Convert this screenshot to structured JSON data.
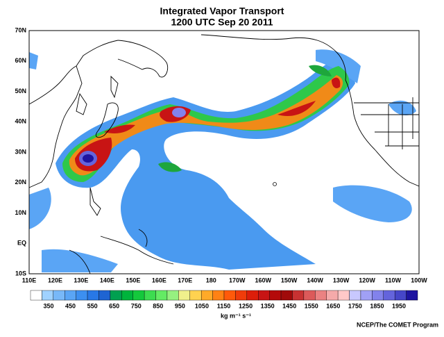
{
  "title": "Integrated Vapor Transport",
  "subtitle": "1200 UTC Sep 20 2011",
  "lat_labels": [
    "70N",
    "60N",
    "50N",
    "40N",
    "30N",
    "20N",
    "10N",
    "EQ",
    "10S"
  ],
  "lon_labels": [
    "110E",
    "120E",
    "130E",
    "140E",
    "150E",
    "160E",
    "170E",
    "180",
    "170W",
    "160W",
    "150W",
    "140W",
    "130W",
    "120W",
    "110W",
    "100W"
  ],
  "colorbar": {
    "colors": [
      "#ffffff",
      "#a0d2ff",
      "#78b8f8",
      "#5aa5f5",
      "#3c8ff0",
      "#2878e6",
      "#1e64d2",
      "#00a050",
      "#00b43c",
      "#14c83c",
      "#3cdc50",
      "#64eb64",
      "#96f080",
      "#f0f08c",
      "#ffd250",
      "#ffaa28",
      "#ff8214",
      "#ff5a0a",
      "#f03c0a",
      "#dc1e0a",
      "#c81414",
      "#b40a0a",
      "#a00a0a",
      "#c83232",
      "#dc5a5a",
      "#eb8282",
      "#f5aaaa",
      "#ffc8c8",
      "#c8c8ff",
      "#a0a0f5",
      "#8282eb",
      "#6464dc",
      "#4646c8",
      "#1e14a0"
    ],
    "labels": [
      "350",
      "450",
      "550",
      "650",
      "750",
      "850",
      "950",
      "1050",
      "1150",
      "1250",
      "1350",
      "1450",
      "1550",
      "1650",
      "1750",
      "1850",
      "1950"
    ],
    "units": "kg m⁻¹ s⁻¹"
  },
  "credit": "NCEP/The COMET Program"
}
